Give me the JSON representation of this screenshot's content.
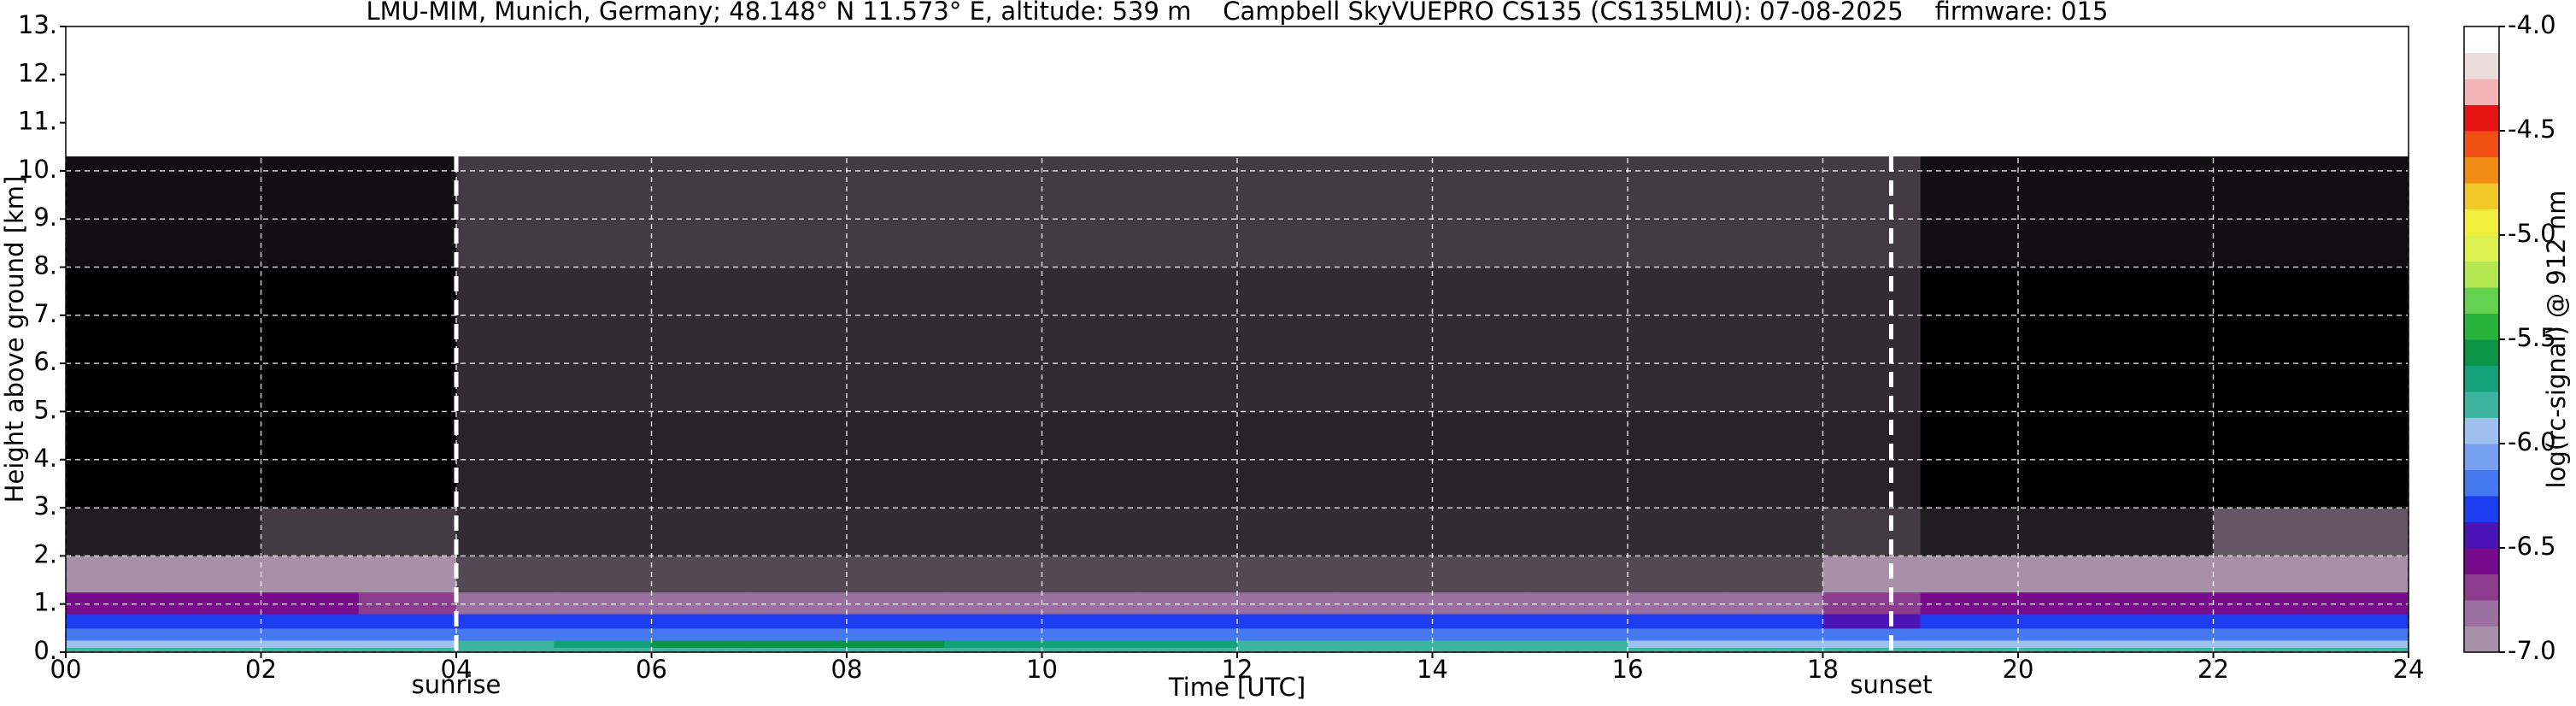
{
  "chart_data": {
    "type": "heatmap",
    "title": "LMU-MIM, Munich, Germany; 48.148° N 11.573° E, altitude: 539 m    Campbell SkyVUEPRO CS135 (CS135LMU): 07-08-2025    firmware: 015",
    "x_label": "Time [UTC]",
    "y_label": "Height above ground [km]",
    "xlim": [
      0,
      24
    ],
    "ylim": [
      0,
      13
    ],
    "xticks": [
      {
        "value": 0,
        "label": "00"
      },
      {
        "value": 2,
        "label": "02"
      },
      {
        "value": 4,
        "label": "04"
      },
      {
        "value": 6,
        "label": "06"
      },
      {
        "value": 8,
        "label": "08"
      },
      10,
      12,
      14,
      16,
      18,
      20,
      22,
      24
    ],
    "yticks": [
      {
        "value": 0,
        "label": "0."
      },
      {
        "value": 1,
        "label": "1."
      },
      {
        "value": 2,
        "label": "2."
      },
      {
        "value": 3,
        "label": "3."
      },
      {
        "value": 4,
        "label": "4."
      },
      {
        "value": 5,
        "label": "5."
      },
      {
        "value": 6,
        "label": "6."
      },
      {
        "value": 7,
        "label": "7."
      },
      {
        "value": 8,
        "label": "8."
      },
      {
        "value": 9,
        "label": "9."
      },
      {
        "value": 10,
        "label": "10."
      },
      {
        "value": 11,
        "label": "11."
      },
      {
        "value": 12,
        "label": "12."
      },
      {
        "value": 13,
        "label": "13."
      }
    ],
    "grid": true,
    "x_bins": [
      0,
      1,
      2,
      3,
      4,
      5,
      6,
      7,
      8,
      9,
      10,
      11,
      12,
      13,
      14,
      15,
      16,
      17,
      18,
      19,
      20,
      21,
      22,
      23,
      24
    ],
    "y_bins": [
      0,
      0.1,
      0.25,
      0.5,
      0.8,
      1.25,
      2,
      3,
      5,
      8,
      10.3
    ],
    "z": [
      [
        -5.8,
        -5.8,
        -5.8,
        -5.8,
        -5.8,
        -5.8,
        -5.8,
        -5.8,
        -5.8,
        -5.8,
        -5.8,
        -5.8,
        -5.8,
        -5.8,
        -5.8,
        -5.8,
        -5.8,
        -5.8,
        -5.8,
        -5.8,
        -5.8,
        -5.8,
        -5.8,
        -5.8
      ],
      [
        -5.9,
        -5.9,
        -5.9,
        -5.9,
        -5.8,
        -5.7,
        -5.6,
        -5.55,
        -5.6,
        -5.65,
        -5.7,
        -5.75,
        -5.8,
        -5.8,
        -5.85,
        -5.85,
        -5.9,
        -5.9,
        -5.9,
        -5.95,
        -5.95,
        -5.95,
        -5.95,
        -5.95
      ],
      [
        -6.15,
        -6.15,
        -6.15,
        -6.15,
        -6.2,
        -6.2,
        -6.2,
        -6.2,
        -6.2,
        -6.2,
        -6.2,
        -6.2,
        -6.2,
        -6.2,
        -6.2,
        -6.2,
        -6.2,
        -6.2,
        -6.2,
        -6.15,
        -6.15,
        -6.15,
        -6.15,
        -6.15
      ],
      [
        -6.35,
        -6.35,
        -6.35,
        -6.35,
        -6.3,
        -6.3,
        -6.3,
        -6.3,
        -6.3,
        -6.3,
        -6.3,
        -6.3,
        -6.3,
        -6.3,
        -6.3,
        -6.3,
        -6.3,
        -6.3,
        -6.4,
        -6.35,
        -6.35,
        -6.35,
        -6.35,
        -6.35
      ],
      [
        -6.6,
        -6.6,
        -6.6,
        -6.65,
        -6.85,
        -6.85,
        -6.85,
        -6.85,
        -6.85,
        -6.85,
        -6.85,
        -6.85,
        -6.85,
        -6.85,
        -6.85,
        -6.85,
        -6.85,
        -6.85,
        -6.65,
        -6.6,
        -6.6,
        -6.6,
        -6.6,
        -6.6
      ],
      [
        -6.95,
        -6.95,
        -6.9,
        -6.95,
        -7.25,
        -7.25,
        -7.25,
        -7.25,
        -7.25,
        -7.25,
        -7.25,
        -7.25,
        -7.25,
        -7.25,
        -7.25,
        -7.25,
        -7.25,
        -7.25,
        -7.0,
        -6.95,
        -6.95,
        -6.95,
        -6.9,
        -6.9
      ],
      [
        -7.4,
        -7.4,
        -7.3,
        -7.3,
        -7.35,
        -7.35,
        -7.35,
        -7.35,
        -7.35,
        -7.35,
        -7.35,
        -7.35,
        -7.35,
        -7.35,
        -7.35,
        -7.35,
        -7.35,
        -7.35,
        -7.3,
        -7.4,
        -7.4,
        -7.4,
        -7.2,
        -7.2
      ],
      [
        -7.5,
        -7.5,
        -7.5,
        -7.5,
        -7.38,
        -7.38,
        -7.38,
        -7.38,
        -7.38,
        -7.38,
        -7.38,
        -7.38,
        -7.38,
        -7.38,
        -7.38,
        -7.38,
        -7.38,
        -7.38,
        -7.38,
        -7.5,
        -7.5,
        -7.5,
        -7.5,
        -7.5
      ],
      [
        -7.5,
        -7.5,
        -7.5,
        -7.5,
        -7.35,
        -7.35,
        -7.35,
        -7.35,
        -7.35,
        -7.35,
        -7.35,
        -7.35,
        -7.35,
        -7.35,
        -7.35,
        -7.35,
        -7.35,
        -7.35,
        -7.35,
        -7.5,
        -7.5,
        -7.5,
        -7.5,
        -7.5
      ],
      [
        -7.45,
        -7.45,
        -7.45,
        -7.45,
        -7.3,
        -7.3,
        -7.3,
        -7.3,
        -7.3,
        -7.3,
        -7.3,
        -7.3,
        -7.3,
        -7.3,
        -7.3,
        -7.3,
        -7.3,
        -7.3,
        -7.3,
        -7.45,
        -7.45,
        -7.45,
        -7.45,
        -7.45
      ]
    ],
    "zlim": [
      -7,
      -4
    ],
    "colors": [
      "#a890a8",
      "#9a70a0",
      "#8c3c8c",
      "#780a8c",
      "#4b14b4",
      "#1e3cf0",
      "#4678f0",
      "#78a0f0",
      "#a0c0f0",
      "#3cb4a0",
      "#14a078",
      "#0a9646",
      "#28b43c",
      "#64d250",
      "#b4e650",
      "#dcf050",
      "#f0f03c",
      "#f0c828",
      "#f08c14",
      "#f05014",
      "#e61414",
      "#f0b4b4",
      "#ebdcdc",
      "#ffffff"
    ],
    "under_color": "#000000",
    "colorbar": {
      "label": "log(rc-signal) @ 912 nm",
      "ticks": [
        {
          "value": -4,
          "label": "-4.0"
        },
        -4.5,
        {
          "value": -5,
          "label": "-5.0"
        },
        -5.5,
        {
          "value": -6,
          "label": "-6.0"
        },
        -6.5,
        {
          "value": -7,
          "label": "-7.0"
        }
      ]
    },
    "annotations": [
      {
        "x": 4,
        "label": "sunrise"
      },
      {
        "x": 18.7,
        "label": "sunset"
      }
    ]
  }
}
